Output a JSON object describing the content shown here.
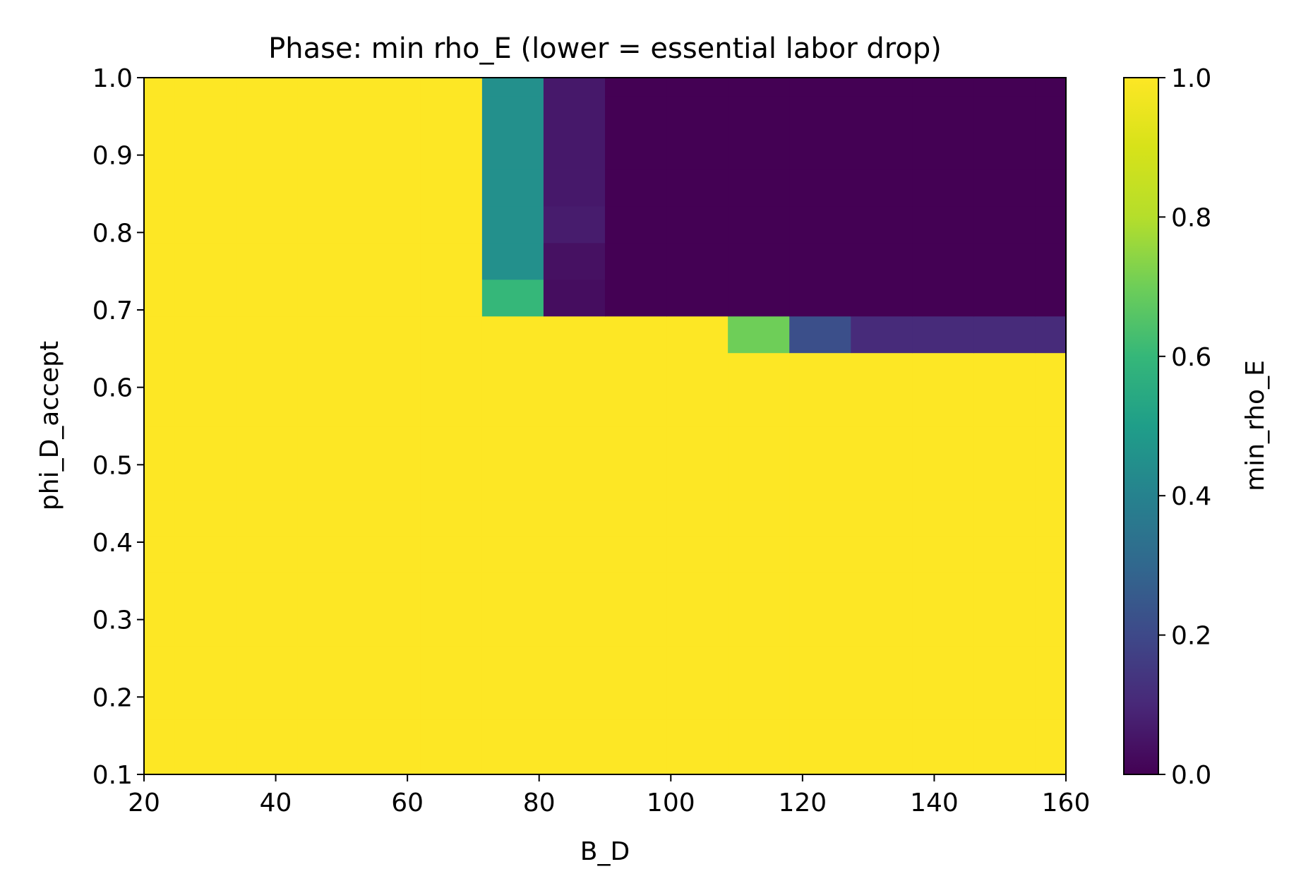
{
  "chart_data": {
    "type": "heatmap",
    "title": "Phase: min rho_E (lower = essential labor drop)",
    "xlabel": "B_D",
    "ylabel": "phi_D_accept",
    "colorbar_label": "min_rho_E",
    "colormap": "viridis",
    "xlim": [
      20,
      160
    ],
    "ylim": [
      0.1,
      1.0
    ],
    "clim": [
      0.0,
      1.0
    ],
    "x_ticks": [
      "20",
      "40",
      "60",
      "80",
      "100",
      "120",
      "140",
      "160"
    ],
    "y_ticks": [
      "0.1",
      "0.2",
      "0.3",
      "0.4",
      "0.5",
      "0.6",
      "0.7",
      "0.8",
      "0.9",
      "1.0"
    ],
    "colorbar_ticks": [
      "0.0",
      "0.2",
      "0.4",
      "0.6",
      "0.8",
      "1.0"
    ],
    "x_centers": [
      20.0,
      29.33,
      38.67,
      48.0,
      57.33,
      66.67,
      76.0,
      85.33,
      94.67,
      104.0,
      113.33,
      122.67,
      132.0,
      141.33,
      150.67,
      160.0
    ],
    "y_centers": [
      0.1,
      0.1474,
      0.1947,
      0.2421,
      0.2895,
      0.3368,
      0.3842,
      0.4316,
      0.4789,
      0.5263,
      0.5737,
      0.6211,
      0.6684,
      0.7158,
      0.7632,
      0.8105,
      0.8579,
      0.9053,
      0.9526,
      1.0
    ],
    "z": [
      [
        1,
        1,
        1,
        1,
        1,
        1,
        1,
        1,
        1,
        1,
        1,
        1,
        1,
        1,
        1,
        1
      ],
      [
        1,
        1,
        1,
        1,
        1,
        1,
        1,
        1,
        1,
        1,
        1,
        1,
        1,
        1,
        1,
        1
      ],
      [
        1,
        1,
        1,
        1,
        1,
        1,
        1,
        1,
        1,
        1,
        1,
        1,
        1,
        1,
        1,
        1
      ],
      [
        1,
        1,
        1,
        1,
        1,
        1,
        1,
        1,
        1,
        1,
        1,
        1,
        1,
        1,
        1,
        1
      ],
      [
        1,
        1,
        1,
        1,
        1,
        1,
        1,
        1,
        1,
        1,
        1,
        1,
        1,
        1,
        1,
        1
      ],
      [
        1,
        1,
        1,
        1,
        1,
        1,
        1,
        1,
        1,
        1,
        1,
        1,
        1,
        1,
        1,
        1
      ],
      [
        1,
        1,
        1,
        1,
        1,
        1,
        1,
        1,
        1,
        1,
        1,
        1,
        1,
        1,
        1,
        1
      ],
      [
        1,
        1,
        1,
        1,
        1,
        1,
        1,
        1,
        1,
        1,
        1,
        1,
        1,
        1,
        1,
        1
      ],
      [
        1,
        1,
        1,
        1,
        1,
        1,
        1,
        1,
        1,
        1,
        1,
        1,
        1,
        1,
        1,
        1
      ],
      [
        1,
        1,
        1,
        1,
        1,
        1,
        1,
        1,
        1,
        1,
        1,
        1,
        1,
        1,
        1,
        1
      ],
      [
        1,
        1,
        1,
        1,
        1,
        1,
        1,
        1,
        1,
        1,
        1,
        1,
        1,
        1,
        1,
        1
      ],
      [
        1,
        1,
        1,
        1,
        1,
        1,
        1,
        1,
        1,
        1,
        1,
        1,
        1,
        1,
        1,
        1
      ],
      [
        1,
        1,
        1,
        1,
        1,
        1,
        1,
        1,
        1,
        1,
        0.7,
        0.22,
        0.11,
        0.11,
        0.11,
        0.11
      ],
      [
        1,
        1,
        1,
        1,
        1,
        1,
        0.6,
        0.03,
        0.0,
        0.0,
        0.0,
        0.0,
        0.0,
        0.0,
        0.0,
        0.0
      ],
      [
        1,
        1,
        1,
        1,
        1,
        1,
        0.45,
        0.04,
        0.0,
        0.0,
        0.0,
        0.0,
        0.0,
        0.0,
        0.0,
        0.0
      ],
      [
        1,
        1,
        1,
        1,
        1,
        1,
        0.45,
        0.07,
        0.0,
        0.0,
        0.0,
        0.0,
        0.0,
        0.0,
        0.0,
        0.0
      ],
      [
        1,
        1,
        1,
        1,
        1,
        1,
        0.45,
        0.06,
        0.0,
        0.0,
        0.0,
        0.0,
        0.0,
        0.0,
        0.0,
        0.0
      ],
      [
        1,
        1,
        1,
        1,
        1,
        1,
        0.45,
        0.06,
        0.0,
        0.0,
        0.0,
        0.0,
        0.0,
        0.0,
        0.0,
        0.0
      ],
      [
        1,
        1,
        1,
        1,
        1,
        1,
        0.45,
        0.06,
        0.0,
        0.0,
        0.0,
        0.0,
        0.0,
        0.0,
        0.0,
        0.0
      ],
      [
        1,
        1,
        1,
        1,
        1,
        1,
        0.45,
        0.06,
        0.0,
        0.0,
        0.0,
        0.0,
        0.0,
        0.0,
        0.0,
        0.0
      ]
    ],
    "grid": false,
    "legend": "none"
  }
}
